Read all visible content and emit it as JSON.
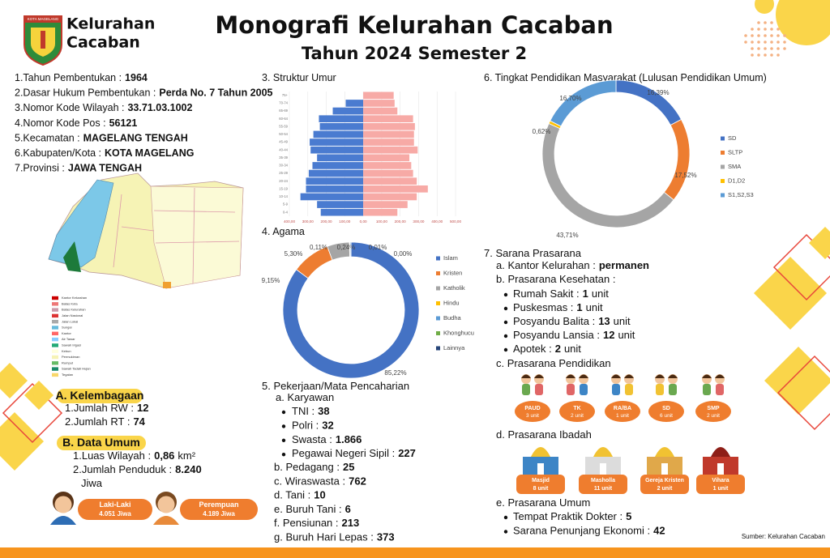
{
  "header": {
    "title": "Monografi Kelurahan Cacaban",
    "subtitle": "Tahun 2024 Semester 2",
    "logo_text": [
      "Kelurahan",
      "Cacaban"
    ],
    "logo_caption": "KOTA MAGELANG"
  },
  "profile": [
    {
      "label": "1.Tahun Pembentukan :",
      "value": "1964"
    },
    {
      "label": "2.Dasar Hukum Pembentukan :",
      "value": "Perda No. 7 Tahun 2005"
    },
    {
      "label": "3.Nomor Kode Wilayah :",
      "value": "33.71.03.1002"
    },
    {
      "label": "4.Nomor Kode Pos :",
      "value": "56121"
    },
    {
      "label": "5.Kecamatan :",
      "value": "MAGELANG TENGAH"
    },
    {
      "label": "6.Kabupaten/Kota :",
      "value": "KOTA MAGELANG"
    },
    {
      "label": "7.Provinsi :",
      "value": "JAWA TENGAH"
    }
  ],
  "map": {
    "legend": [
      "Kantor Kelurahan",
      "Batas Kota",
      "Batas Kelurahan",
      "Jalan Nasional",
      "Jalan Lokal",
      "Sungai",
      "Kantor",
      "Air Tawar",
      "Sawah Irigasi",
      "Kebun",
      "Permukiman",
      "Rumput",
      "Sawah Tadah Hujan",
      "Tegalan"
    ]
  },
  "kelembagaan": {
    "title": "A. Kelembagaan",
    "items": [
      {
        "label": "1.Jumlah RW :",
        "value": "12"
      },
      {
        "label": "2.Jumlah RT :",
        "value": "74"
      }
    ]
  },
  "data_umum": {
    "title": "B. Data Umum",
    "items": [
      {
        "label": "1.Luas Wilayah :",
        "value": "0,86",
        "unit": "km²"
      },
      {
        "label": "2.Jumlah Penduduk :",
        "value": "8.240",
        "unit": "Jiwa"
      }
    ],
    "gender": [
      {
        "label": "Laki-Laki",
        "value": "4.051 Jiwa"
      },
      {
        "label": "Perempuan",
        "value": "4.189 Jiwa"
      }
    ]
  },
  "chart_data": [
    {
      "type": "pyramid",
      "title": "3. Struktur Umur",
      "categories": [
        "0-4",
        "5-9",
        "10-14",
        "15-19",
        "20-24",
        "25-29",
        "30-34",
        "35-39",
        "40-44",
        "45-49",
        "50-54",
        "55-59",
        "60-64",
        "65-69",
        "70-74",
        "75+"
      ],
      "series": [
        {
          "color": "#4a7bd0",
          "values": [
            -230,
            -250,
            -340,
            -310,
            -310,
            -295,
            -275,
            -250,
            -285,
            -290,
            -270,
            -235,
            -240,
            -165,
            -95,
            0
          ]
        },
        {
          "color": "#f7aaa6",
          "values": [
            185,
            240,
            290,
            350,
            290,
            270,
            260,
            250,
            295,
            275,
            275,
            280,
            270,
            185,
            170,
            165
          ]
        }
      ],
      "xlim": [
        -400,
        500
      ],
      "xticks": [
        {
          "value": -400,
          "label": "400,00"
        },
        {
          "value": -300,
          "label": "300,00"
        },
        {
          "value": -200,
          "label": "200,00"
        },
        {
          "value": -100,
          "label": "100,00"
        },
        {
          "value": 0,
          "label": "0,00"
        },
        {
          "value": 100,
          "label": "100,00"
        },
        {
          "value": 200,
          "label": "200,00"
        },
        {
          "value": 300,
          "label": "300,00"
        },
        {
          "value": 400,
          "label": "400,00"
        },
        {
          "value": 500,
          "label": "500,00"
        }
      ],
      "grid": true
    },
    {
      "type": "donut",
      "title": "4. Agama",
      "categories": [
        "Islam",
        "Kristen",
        "Katholik",
        "Hindu",
        "Budha",
        "Khonghucu",
        "Lainnya"
      ],
      "values": [
        85.22,
        9.15,
        5.3,
        0.11,
        0.24,
        0.01,
        0.0
      ],
      "value_labels": [
        "85,22%",
        "9,15%",
        "5,30%",
        "0,11%",
        "0,24%",
        "0,01%",
        "0,00%"
      ],
      "colors": [
        "#4472c4",
        "#ed7d31",
        "#a5a5a5",
        "#ffc000",
        "#5b9bd5",
        "#70ad47",
        "#264478"
      ],
      "legend": "right"
    },
    {
      "type": "donut",
      "title": "6. Tingkat Pendidikan Masyarakat (Lulusan Pendidikan Umum)",
      "categories": [
        "SD",
        "SLTP",
        "SMA",
        "D1,D2",
        "S1,S2,S3"
      ],
      "values": [
        16.39,
        17.52,
        43.71,
        0.62,
        16.7
      ],
      "value_labels": [
        "16,39%",
        "17,52%",
        "43,71%",
        "0,62%",
        "16,70%"
      ],
      "colors": [
        "#4472c4",
        "#ed7d31",
        "#a5a5a5",
        "#ffc000",
        "#5b9bd5"
      ],
      "legend": "right"
    }
  ],
  "pekerjaan": {
    "title": "5. Pekerjaan/Mata Pencaharian",
    "karyawan": {
      "label": "a. Karyawan",
      "items": [
        {
          "label": "TNI :",
          "value": "38"
        },
        {
          "label": "Polri :",
          "value": "32"
        },
        {
          "label": "Swasta :",
          "value": "1.866"
        },
        {
          "label": "Pegawai Negeri Sipil :",
          "value": "227"
        }
      ]
    },
    "items": [
      {
        "label": "b. Pedagang :",
        "value": "25"
      },
      {
        "label": "c. Wiraswasta :",
        "value": "762"
      },
      {
        "label": "d. Tani :",
        "value": "10"
      },
      {
        "label": "e. Buruh Tani :",
        "value": "6"
      },
      {
        "label": "f. Pensiunan :",
        "value": "213"
      },
      {
        "label": "g. Buruh Hari Lepas :",
        "value": "373"
      }
    ]
  },
  "sarana": {
    "title": "7. Sarana Prasarana",
    "kantor": {
      "label": "a. Kantor Kelurahan :",
      "value": "permanen"
    },
    "kesehatan": {
      "label": "b. Prasarana Kesehatan :",
      "items": [
        {
          "label": "Rumah Sakit :",
          "value": "1",
          "unit": "unit"
        },
        {
          "label": "Puskesmas :",
          "value": "1",
          "unit": "unit"
        },
        {
          "label": "Posyandu Balita :",
          "value": "13",
          "unit": "unit"
        },
        {
          "label": "Posyandu Lansia :",
          "value": "12",
          "unit": "unit"
        },
        {
          "label": "Apotek :",
          "value": "2",
          "unit": "unit"
        }
      ]
    },
    "pendidikan": {
      "label": "c. Prasarana Pendidikan",
      "items": [
        {
          "name": "PAUD",
          "count": "3 unit"
        },
        {
          "name": "TK",
          "count": "2 unit"
        },
        {
          "name": "RA/BA",
          "count": "1 unit"
        },
        {
          "name": "SD",
          "count": "6 unit"
        },
        {
          "name": "SMP",
          "count": "2 unit"
        }
      ]
    },
    "ibadah": {
      "label": "d. Prasarana Ibadah",
      "items": [
        {
          "name": "Masjid",
          "count": "8 unit"
        },
        {
          "name": "Masholla",
          "count": "11 unit"
        },
        {
          "name": "Gereja Kristen",
          "count": "2 unit"
        },
        {
          "name": "Vihara",
          "count": "1 unit"
        }
      ]
    },
    "umum": {
      "label": "e. Prasarana Umum",
      "items": [
        {
          "label": "Tempat Praktik Dokter :",
          "value": "5"
        },
        {
          "label": "Sarana Penunjang Ekonomi :",
          "value": "42"
        }
      ]
    }
  },
  "footer": {
    "source": "Sumber: Kelurahan Cacaban"
  }
}
